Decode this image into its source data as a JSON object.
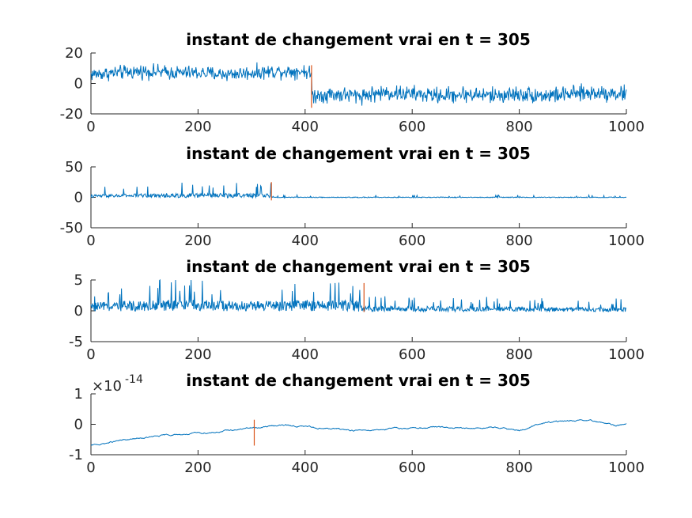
{
  "chart_data": [
    {
      "type": "line",
      "title": "instant de changement vrai en t = 305",
      "xlim": [
        0,
        1000
      ],
      "ylim": [
        -20,
        20
      ],
      "xticks": [
        "0",
        "200",
        "400",
        "600",
        "800",
        "1000"
      ],
      "yticks": [
        "20",
        "0",
        "-20"
      ],
      "series": [
        {
          "x": [
            0,
            50,
            100,
            150,
            200,
            250,
            300,
            350,
            400,
            412,
            413,
            450,
            500,
            550,
            600,
            650,
            700,
            750,
            800,
            850,
            900,
            950,
            1000
          ],
          "values": [
            6,
            7,
            8,
            7,
            7,
            6,
            7,
            8,
            8,
            6,
            -8,
            -7,
            -8,
            -6,
            -7,
            -8,
            -7,
            -8,
            -7,
            -8,
            -7,
            -6,
            -7
          ],
          "spread": [
            3.5,
            3.5,
            3.5,
            3.5,
            3.5,
            3.5,
            3.5,
            3.5,
            3.5,
            3.5,
            4,
            4,
            4,
            4,
            4,
            4,
            4,
            4,
            4,
            4,
            4,
            4,
            4
          ]
        }
      ],
      "changepoint": {
        "x": 412,
        "y": [
          -16,
          12
        ],
        "color": "#D95319"
      },
      "line_color": "#0072BD"
    },
    {
      "type": "line",
      "title": "instant de changement vrai en t = 305",
      "xlim": [
        0,
        1000
      ],
      "ylim": [
        -50,
        50
      ],
      "xticks": [
        "0",
        "200",
        "400",
        "600",
        "800",
        "1000"
      ],
      "yticks": [
        "50",
        "0",
        "-50"
      ],
      "series": [
        {
          "x": [
            0,
            100,
            200,
            300,
            336,
            337,
            400,
            500,
            600,
            700,
            800,
            900,
            1000
          ],
          "values": [
            2,
            3,
            3,
            3,
            3,
            0,
            0,
            0,
            0,
            0,
            0,
            0,
            0
          ],
          "spread": [
            4,
            5,
            6,
            6,
            6,
            1,
            1,
            1,
            1,
            1,
            1,
            1,
            1
          ]
        }
      ],
      "changepoint": {
        "x": 337,
        "y": [
          -5,
          25
        ],
        "color": "#D95319"
      },
      "line_color": "#0072BD"
    },
    {
      "type": "line",
      "title": "instant de changement vrai en t = 305",
      "xlim": [
        0,
        1000
      ],
      "ylim": [
        -5,
        5
      ],
      "xticks": [
        "0",
        "200",
        "400",
        "600",
        "800",
        "1000"
      ],
      "yticks": [
        "5",
        "0",
        "-5"
      ],
      "series": [
        {
          "x": [
            0,
            100,
            200,
            300,
            400,
            500,
            510,
            600,
            700,
            800,
            900,
            1000
          ],
          "values": [
            0.4,
            0.6,
            0.6,
            0.5,
            0.6,
            0.5,
            0.2,
            0.2,
            0.15,
            0.15,
            0.1,
            0.1
          ],
          "spread": [
            1.4,
            1.8,
            1.8,
            1.6,
            1.8,
            1.8,
            0.9,
            0.9,
            0.8,
            0.8,
            0.7,
            0.7
          ]
        }
      ],
      "changepoint": {
        "x": 510,
        "y": [
          -0.2,
          4.5
        ],
        "color": "#D95319"
      },
      "line_color": "#0072BD"
    },
    {
      "type": "line",
      "title": "instant de changement vrai en t = 305",
      "xlim": [
        0,
        1000
      ],
      "ylim": [
        -1,
        1
      ],
      "y_exponent": "-14",
      "xticks": [
        "0",
        "200",
        "400",
        "600",
        "800",
        "1000"
      ],
      "yticks": [
        "1",
        "0",
        "-1"
      ],
      "series": [
        {
          "x": [
            0,
            20,
            50,
            100,
            150,
            200,
            250,
            300,
            320,
            350,
            400,
            450,
            500,
            550,
            600,
            650,
            700,
            750,
            800,
            850,
            900,
            950,
            980,
            1000
          ],
          "values": [
            -0.7,
            -0.65,
            -0.55,
            -0.45,
            -0.35,
            -0.3,
            -0.22,
            -0.12,
            -0.1,
            -0.02,
            -0.08,
            -0.15,
            -0.2,
            -0.15,
            -0.12,
            -0.1,
            -0.15,
            -0.1,
            -0.2,
            0.05,
            0.12,
            0.08,
            -0.05,
            0.02
          ],
          "spread": [
            0.03,
            0.03,
            0.03,
            0.03,
            0.03,
            0.03,
            0.03,
            0.03,
            0.03,
            0.03,
            0.03,
            0.03,
            0.03,
            0.03,
            0.03,
            0.03,
            0.03,
            0.03,
            0.03,
            0.03,
            0.03,
            0.03,
            0.03,
            0.03
          ]
        }
      ],
      "changepoint": {
        "x": 305,
        "y": [
          -0.7,
          0.15
        ],
        "color": "#D95319"
      },
      "line_color": "#0072BD"
    }
  ]
}
